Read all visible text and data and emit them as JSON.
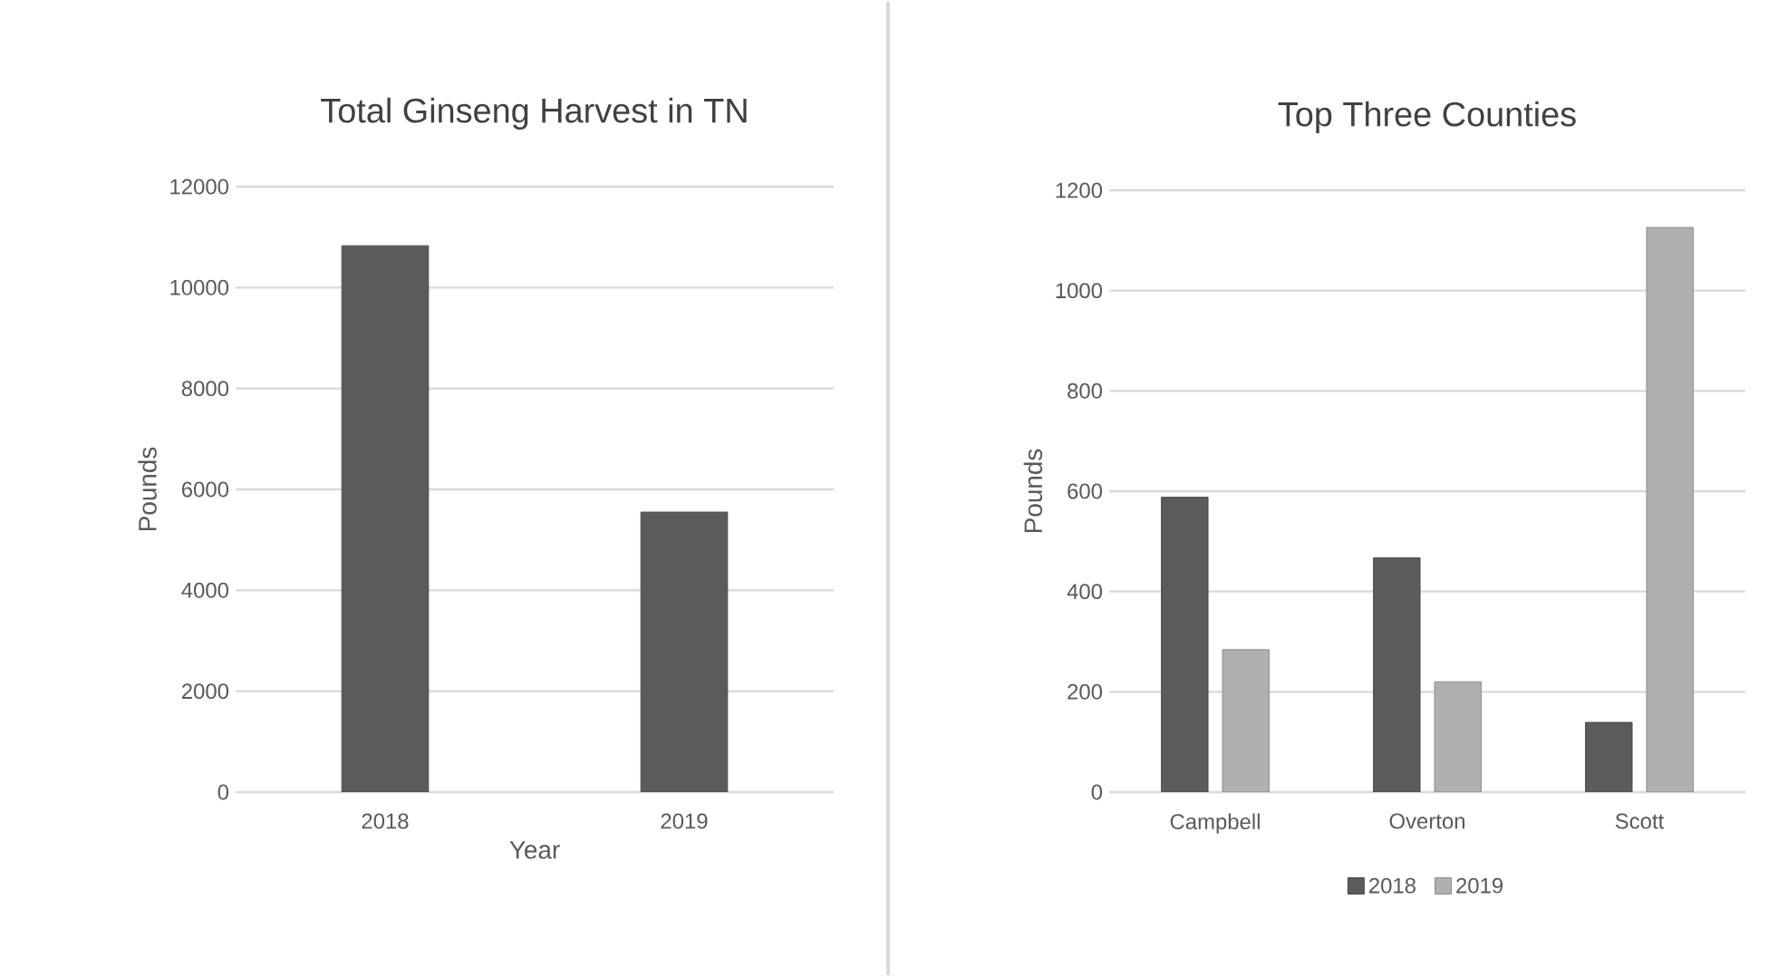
{
  "chart_data": [
    {
      "type": "bar",
      "title": "Total Ginseng Harvest in TN",
      "xlabel": "Year",
      "ylabel": "Pounds",
      "categories": [
        "2018",
        "2019"
      ],
      "values": [
        10830,
        5550
      ],
      "color": "#5b5b5b",
      "ylim": [
        0,
        12000
      ],
      "yticks": [
        0,
        2000,
        4000,
        6000,
        8000,
        10000,
        12000
      ],
      "grid": "y"
    },
    {
      "type": "bar",
      "title": "Top Three Counties",
      "ylabel": "Pounds",
      "categories": [
        "Campbell",
        "Overton",
        "Scott"
      ],
      "series": [
        {
          "name": "2018",
          "color": "#5b5b5b",
          "values": [
            588,
            467,
            139
          ]
        },
        {
          "name": "2019",
          "color": "#b0b0b0",
          "values": [
            284,
            220,
            1126
          ]
        }
      ],
      "ylim": [
        0,
        1200
      ],
      "yticks": [
        0,
        200,
        400,
        600,
        800,
        1000,
        1200
      ],
      "grid": "y",
      "legend": "bottom"
    }
  ]
}
